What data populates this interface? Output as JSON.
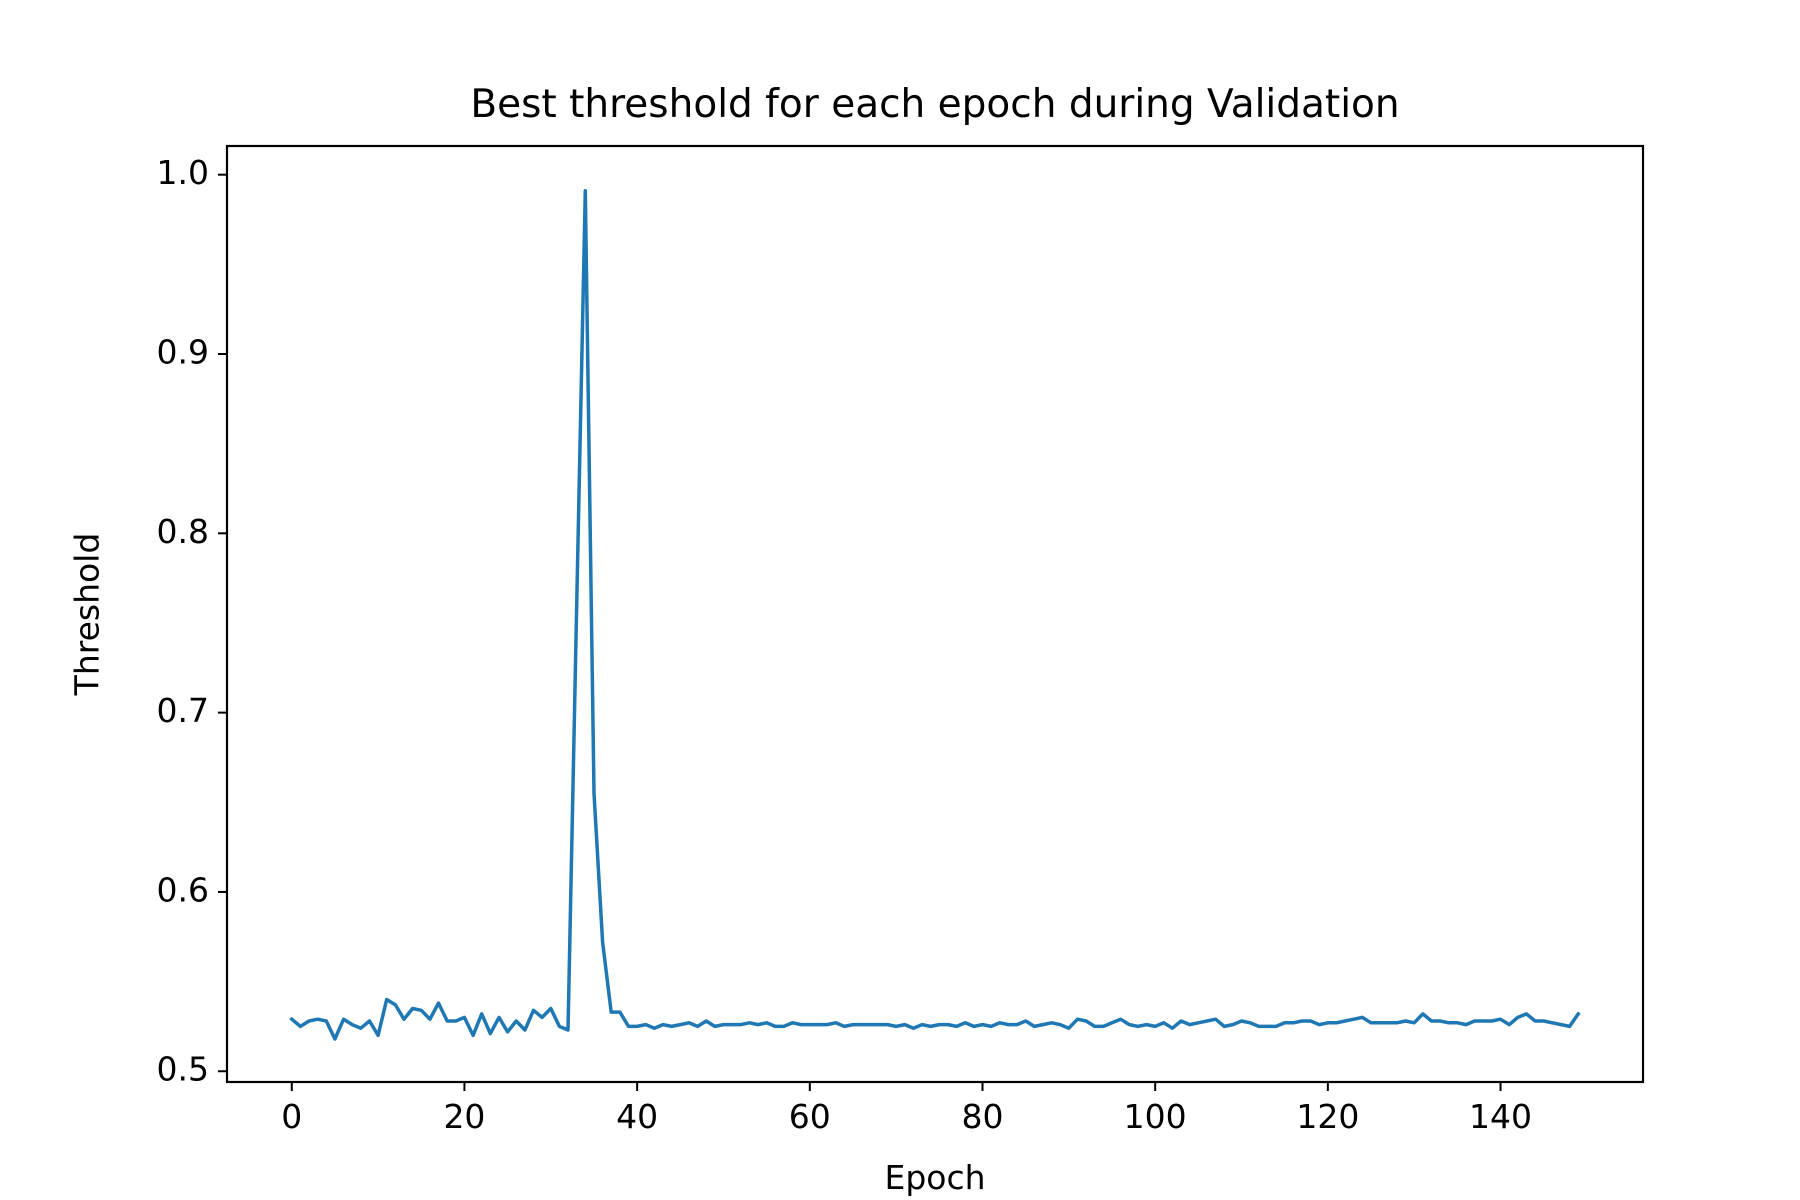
{
  "chart_data": {
    "type": "line",
    "title": "Best threshold for each epoch during Validation",
    "xlabel": "Epoch",
    "ylabel": "Threshold",
    "xlim": [
      -7.5,
      156.5
    ],
    "ylim": [
      0.494,
      1.016
    ],
    "xticks": [
      0,
      20,
      40,
      60,
      80,
      100,
      120,
      140
    ],
    "yticks": [
      0.5,
      0.6,
      0.7,
      0.8,
      0.9,
      1.0
    ],
    "xtick_labels": [
      "0",
      "20",
      "40",
      "60",
      "80",
      "100",
      "120",
      "140"
    ],
    "ytick_labels": [
      "0.5",
      "0.6",
      "0.7",
      "0.8",
      "0.9",
      "1.0"
    ],
    "grid": false,
    "series": [
      {
        "color": "#1f77b4",
        "x": [
          0,
          1,
          2,
          3,
          4,
          5,
          6,
          7,
          8,
          9,
          10,
          11,
          12,
          13,
          14,
          15,
          16,
          17,
          18,
          19,
          20,
          21,
          22,
          23,
          24,
          25,
          26,
          27,
          28,
          29,
          30,
          31,
          32,
          33,
          34,
          35,
          36,
          37,
          38,
          39,
          40,
          41,
          42,
          43,
          44,
          45,
          46,
          47,
          48,
          49,
          50,
          51,
          52,
          53,
          54,
          55,
          56,
          57,
          58,
          59,
          60,
          61,
          62,
          63,
          64,
          65,
          66,
          67,
          68,
          69,
          70,
          71,
          72,
          73,
          74,
          75,
          76,
          77,
          78,
          79,
          80,
          81,
          82,
          83,
          84,
          85,
          86,
          87,
          88,
          89,
          90,
          91,
          92,
          93,
          94,
          95,
          96,
          97,
          98,
          99,
          100,
          101,
          102,
          103,
          104,
          105,
          106,
          107,
          108,
          109,
          110,
          111,
          112,
          113,
          114,
          115,
          116,
          117,
          118,
          119,
          120,
          121,
          122,
          123,
          124,
          125,
          126,
          127,
          128,
          129,
          130,
          131,
          132,
          133,
          134,
          135,
          136,
          137,
          138,
          139,
          140,
          141,
          142,
          143,
          144,
          145,
          146,
          147,
          148,
          149
        ],
        "y": [
          0.529,
          0.525,
          0.528,
          0.529,
          0.528,
          0.518,
          0.529,
          0.526,
          0.524,
          0.528,
          0.52,
          0.54,
          0.537,
          0.529,
          0.535,
          0.534,
          0.529,
          0.538,
          0.528,
          0.528,
          0.53,
          0.52,
          0.532,
          0.521,
          0.53,
          0.522,
          0.528,
          0.523,
          0.534,
          0.53,
          0.535,
          0.525,
          0.523,
          0.76,
          0.991,
          0.655,
          0.572,
          0.533,
          0.533,
          0.525,
          0.525,
          0.526,
          0.524,
          0.526,
          0.525,
          0.526,
          0.527,
          0.525,
          0.528,
          0.525,
          0.526,
          0.526,
          0.526,
          0.527,
          0.526,
          0.527,
          0.525,
          0.525,
          0.527,
          0.526,
          0.526,
          0.526,
          0.526,
          0.527,
          0.525,
          0.526,
          0.526,
          0.526,
          0.526,
          0.526,
          0.525,
          0.526,
          0.524,
          0.526,
          0.525,
          0.526,
          0.526,
          0.525,
          0.527,
          0.525,
          0.526,
          0.525,
          0.527,
          0.526,
          0.526,
          0.528,
          0.525,
          0.526,
          0.527,
          0.526,
          0.524,
          0.529,
          0.528,
          0.525,
          0.525,
          0.527,
          0.529,
          0.526,
          0.525,
          0.526,
          0.525,
          0.527,
          0.524,
          0.528,
          0.526,
          0.527,
          0.528,
          0.529,
          0.525,
          0.526,
          0.528,
          0.527,
          0.525,
          0.525,
          0.525,
          0.527,
          0.527,
          0.528,
          0.528,
          0.526,
          0.527,
          0.527,
          0.528,
          0.529,
          0.53,
          0.527,
          0.527,
          0.527,
          0.527,
          0.528,
          0.527,
          0.532,
          0.528,
          0.528,
          0.527,
          0.527,
          0.526,
          0.528,
          0.528,
          0.528,
          0.529,
          0.526,
          0.53,
          0.532,
          0.528,
          0.528,
          0.527,
          0.526,
          0.525,
          0.532
        ]
      }
    ]
  }
}
